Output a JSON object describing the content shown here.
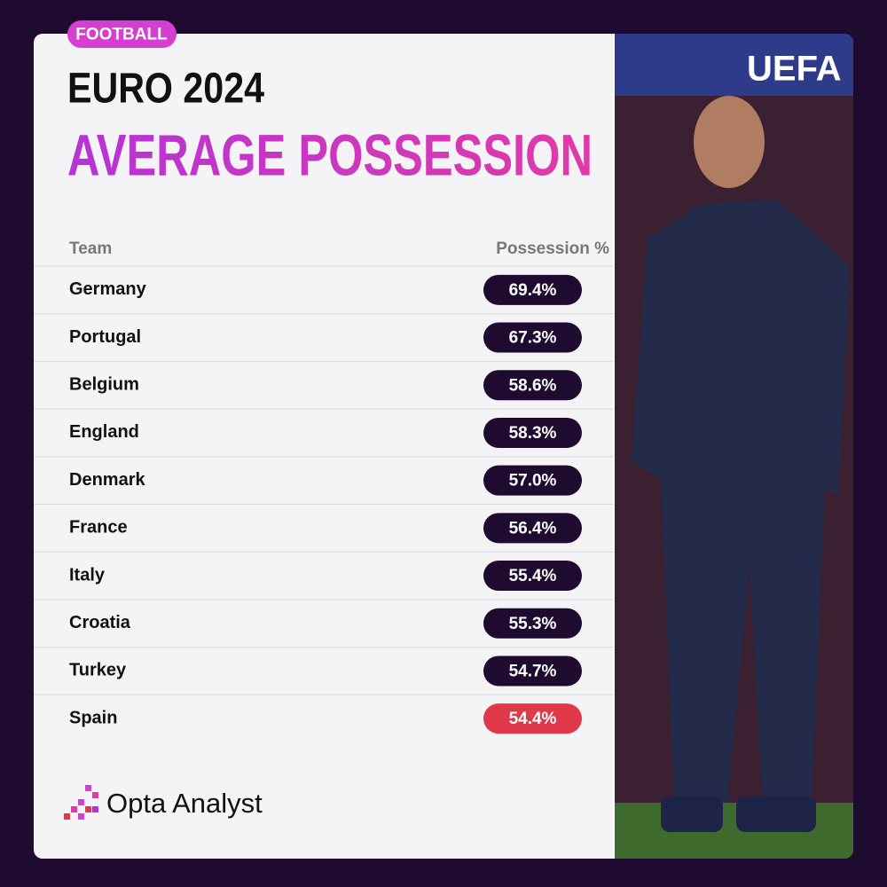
{
  "tag": "FOOTBALL",
  "header": {
    "title": "EURO 2024",
    "subtitle": "AVERAGE POSSESSION"
  },
  "table": {
    "columns": [
      "Team",
      "Possession %"
    ],
    "rows": [
      [
        "Germany",
        "69.4%"
      ],
      [
        "Portugal",
        "67.3%"
      ],
      [
        "Belgium",
        "58.6%"
      ],
      [
        "England",
        "58.3%"
      ],
      [
        "Denmark",
        "57.0%"
      ],
      [
        "France",
        "56.4%"
      ],
      [
        "Italy",
        "55.4%"
      ],
      [
        "Croatia",
        "55.3%"
      ],
      [
        "Turkey",
        "54.7%"
      ],
      [
        "Spain",
        "54.4%"
      ]
    ]
  },
  "photo": {
    "banner": "UEFA"
  },
  "footer": {
    "brand": "Opta Analyst"
  }
}
